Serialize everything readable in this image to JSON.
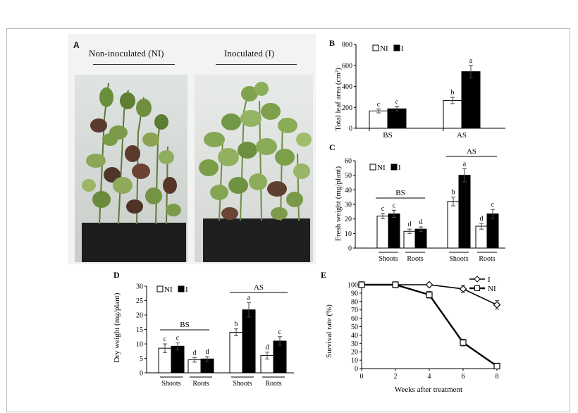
{
  "panel_a": {
    "letter": "A",
    "left_label": "Non-inoculated (NI)",
    "right_label": "Inoculated (I)"
  },
  "chart_data": [
    {
      "panel": "B",
      "type": "bar",
      "ylabel": "Total leaf area (cm²)",
      "ylim": [
        0,
        800
      ],
      "yticks": [
        0,
        200,
        400,
        600,
        800
      ],
      "categories": [
        "BS",
        "AS"
      ],
      "legend": {
        "items": [
          "NI",
          "I"
        ],
        "placement": "top-left"
      },
      "series": [
        {
          "name": "NI",
          "fill": "#ffffff",
          "values": [
            165,
            265
          ],
          "errors": [
            18,
            30
          ],
          "letters": [
            "c",
            "b"
          ]
        },
        {
          "name": "I",
          "fill": "#000000",
          "values": [
            185,
            540
          ],
          "errors": [
            20,
            60
          ],
          "letters": [
            "c",
            "a"
          ]
        }
      ]
    },
    {
      "panel": "C",
      "type": "bar",
      "ylabel": "Fresh weight (mg/plant)",
      "ylim": [
        0,
        60
      ],
      "yticks": [
        0,
        10,
        20,
        30,
        40,
        50,
        60
      ],
      "legend": {
        "items": [
          "NI",
          "I"
        ],
        "placement": "top-left"
      },
      "groups": [
        {
          "label": "BS",
          "tissues": [
            {
              "label": "Shoots",
              "values": [
                22,
                23.5
              ],
              "errors": [
                1.8,
                2.5
              ],
              "letters": [
                "c",
                "c"
              ]
            },
            {
              "label": "Roots",
              "values": [
                11.5,
                13
              ],
              "errors": [
                1.5,
                1.5
              ],
              "letters": [
                "d",
                "d"
              ]
            }
          ]
        },
        {
          "label": "AS",
          "tissues": [
            {
              "label": "Shoots",
              "values": [
                32,
                50
              ],
              "errors": [
                3,
                4.5
              ],
              "letters": [
                "b",
                "a"
              ]
            },
            {
              "label": "Roots",
              "values": [
                15,
                23.5
              ],
              "errors": [
                2,
                3
              ],
              "letters": [
                "d",
                "c"
              ]
            }
          ]
        }
      ]
    },
    {
      "panel": "D",
      "type": "bar",
      "ylabel": "Dry weight (mg/plant)",
      "ylim": [
        0,
        30
      ],
      "yticks": [
        0,
        5,
        10,
        15,
        20,
        25,
        30
      ],
      "legend": {
        "items": [
          "NI",
          "I"
        ],
        "placement": "top-left"
      },
      "groups": [
        {
          "label": "BS",
          "tissues": [
            {
              "label": "Shoots",
              "values": [
                8.5,
                9.2
              ],
              "errors": [
                1.5,
                1.2
              ],
              "letters": [
                "c",
                "c"
              ]
            },
            {
              "label": "Roots",
              "values": [
                4.5,
                4.8
              ],
              "errors": [
                0.8,
                0.8
              ],
              "letters": [
                "d",
                "d"
              ]
            }
          ]
        },
        {
          "label": "AS",
          "tissues": [
            {
              "label": "Shoots",
              "values": [
                14,
                21.8
              ],
              "errors": [
                1.2,
                2.5
              ],
              "letters": [
                "b",
                "a"
              ]
            },
            {
              "label": "Roots",
              "values": [
                6,
                11
              ],
              "errors": [
                1.2,
                1.5
              ],
              "letters": [
                "d",
                "c"
              ]
            }
          ]
        }
      ]
    },
    {
      "panel": "E",
      "type": "line",
      "xlabel": "Weeks after treatment",
      "ylabel": "Survival rate (%)",
      "xlim": [
        0,
        8
      ],
      "ylim": [
        0,
        100
      ],
      "xticks": [
        0,
        2,
        4,
        6,
        8
      ],
      "yticks": [
        0,
        10,
        20,
        30,
        40,
        50,
        60,
        70,
        80,
        90,
        100
      ],
      "legend": {
        "placement": "top-right"
      },
      "series": [
        {
          "name": "I",
          "marker": "diamond",
          "x": [
            0,
            2,
            4,
            6,
            8
          ],
          "y": [
            100,
            100,
            100,
            95,
            76
          ],
          "errors": [
            0,
            0,
            0,
            4,
            5
          ]
        },
        {
          "name": "NI",
          "marker": "square",
          "x": [
            0,
            2,
            4,
            6,
            8
          ],
          "y": [
            100,
            100,
            88,
            31,
            3
          ],
          "errors": [
            0,
            0,
            4,
            4,
            1
          ]
        }
      ]
    }
  ]
}
